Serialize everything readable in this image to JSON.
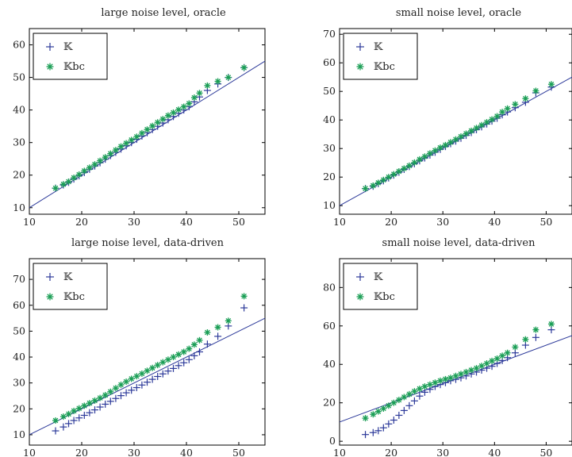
{
  "colors": {
    "K": "#2d3a9a",
    "Kbc": "#1a9e55",
    "ref_line": "#2d3a9a",
    "axis": "#000000"
  },
  "chart_data": [
    {
      "type": "scatter",
      "title": "large noise level, oracle",
      "xlim": [
        10,
        55
      ],
      "ylim": [
        8,
        65
      ],
      "xticks": [
        "10",
        "20",
        "30",
        "40",
        "50"
      ],
      "yticks": [
        "10",
        "20",
        "30",
        "40",
        "50",
        "60"
      ],
      "legend": {
        "position": "top-left",
        "entries": [
          "𝕂",
          "𝕂bc"
        ]
      },
      "reference_line": [
        [
          10,
          10
        ],
        [
          55,
          55
        ]
      ],
      "series": [
        {
          "name": "𝕂",
          "marker": "plus",
          "x": [
            15,
            16.5,
            17.5,
            18.5,
            19.5,
            20.5,
            21.5,
            22.5,
            23.5,
            24.5,
            25.5,
            26.5,
            27.5,
            28.5,
            29.5,
            30.5,
            31.5,
            32.5,
            33.5,
            34.5,
            35.5,
            36.5,
            37.5,
            38.5,
            39.5,
            40.5,
            41.5,
            42.5,
            44,
            46,
            48,
            51
          ],
          "y": [
            16,
            17,
            17.8,
            18.8,
            19.8,
            20.8,
            21.8,
            22.8,
            23.8,
            24.9,
            26,
            27,
            28,
            29,
            30,
            31,
            32,
            33,
            34,
            35,
            36,
            37,
            38,
            39,
            40,
            41,
            42.5,
            44,
            46,
            48,
            50,
            53
          ]
        },
        {
          "name": "𝕂bc",
          "marker": "star",
          "x": [
            15,
            16.5,
            17.5,
            18.5,
            19.5,
            20.5,
            21.5,
            22.5,
            23.5,
            24.5,
            25.5,
            26.5,
            27.5,
            28.5,
            29.5,
            30.5,
            31.5,
            32.5,
            33.5,
            34.5,
            35.5,
            36.5,
            37.5,
            38.5,
            39.5,
            40.5,
            41.5,
            42.5,
            44,
            46,
            48,
            51
          ],
          "y": [
            16,
            17.2,
            18,
            19.2,
            20.2,
            21.3,
            22.3,
            23.3,
            24.4,
            25.5,
            26.6,
            27.7,
            28.8,
            29.8,
            30.8,
            31.8,
            32.9,
            34,
            35.1,
            36.2,
            37.2,
            38.3,
            39.2,
            40.1,
            41,
            42,
            43.8,
            45.2,
            47.5,
            48.8,
            50,
            53
          ]
        }
      ]
    },
    {
      "type": "scatter",
      "title": "small noise level, oracle",
      "xlim": [
        10,
        55
      ],
      "ylim": [
        7,
        72
      ],
      "xticks": [
        "10",
        "20",
        "30",
        "40",
        "50"
      ],
      "yticks": [
        "10",
        "20",
        "30",
        "40",
        "50",
        "60",
        "70"
      ],
      "legend": {
        "position": "top-left",
        "entries": [
          "𝕂",
          "𝕂bc"
        ]
      },
      "reference_line": [
        [
          10,
          10
        ],
        [
          55,
          55
        ]
      ],
      "series": [
        {
          "name": "𝕂",
          "marker": "plus",
          "x": [
            15,
            16.5,
            17.5,
            18.5,
            19.5,
            20.5,
            21.5,
            22.5,
            23.5,
            24.5,
            25.5,
            26.5,
            27.5,
            28.5,
            29.5,
            30.5,
            31.5,
            32.5,
            33.5,
            34.5,
            35.5,
            36.5,
            37.5,
            38.5,
            39.5,
            40.5,
            41.5,
            42.5,
            44,
            46,
            48,
            51
          ],
          "y": [
            16,
            16.8,
            17.7,
            18.7,
            19.7,
            20.7,
            21.7,
            22.7,
            23.7,
            24.7,
            25.7,
            26.7,
            27.7,
            28.7,
            29.7,
            30.7,
            31.7,
            32.6,
            33.6,
            34.6,
            35.6,
            36.6,
            37.6,
            38.6,
            39.6,
            40.6,
            41.8,
            42.8,
            44.3,
            46.2,
            49.5,
            51.5
          ]
        },
        {
          "name": "𝕂bc",
          "marker": "star",
          "x": [
            15,
            16.5,
            17.5,
            18.5,
            19.5,
            20.5,
            21.5,
            22.5,
            23.5,
            24.5,
            25.5,
            26.5,
            27.5,
            28.5,
            29.5,
            30.5,
            31.5,
            32.5,
            33.5,
            34.5,
            35.5,
            36.5,
            37.5,
            38.5,
            39.5,
            40.5,
            41.5,
            42.5,
            44,
            46,
            48,
            51
          ],
          "y": [
            16,
            17,
            18,
            19,
            20,
            21,
            22,
            23,
            24,
            25.1,
            26.2,
            27.2,
            28.3,
            29.3,
            30.3,
            31.2,
            32.2,
            33.2,
            34.2,
            35.2,
            36.2,
            37.2,
            38.2,
            39.2,
            40.2,
            41.3,
            42.8,
            44,
            45.5,
            47.5,
            50.2,
            52.5
          ]
        }
      ]
    },
    {
      "type": "scatter",
      "title": "large noise level, data-driven",
      "xlim": [
        10,
        55
      ],
      "ylim": [
        6,
        78
      ],
      "xticks": [
        "10",
        "20",
        "30",
        "40",
        "50"
      ],
      "yticks": [
        "10",
        "20",
        "30",
        "40",
        "50",
        "60",
        "70"
      ],
      "legend": {
        "position": "top-left",
        "entries": [
          "𝕂",
          "𝕂bc"
        ]
      },
      "reference_line": [
        [
          10,
          10
        ],
        [
          55,
          55
        ]
      ],
      "series": [
        {
          "name": "𝕂",
          "marker": "plus",
          "x": [
            15,
            16.5,
            17.5,
            18.5,
            19.5,
            20.5,
            21.5,
            22.5,
            23.5,
            24.5,
            25.5,
            26.5,
            27.5,
            28.5,
            29.5,
            30.5,
            31.5,
            32.5,
            33.5,
            34.5,
            35.5,
            36.5,
            37.5,
            38.5,
            39.5,
            40.5,
            41.5,
            42.5,
            44,
            46,
            48,
            51
          ],
          "y": [
            11.5,
            13,
            14.3,
            15.5,
            16.5,
            17.5,
            18.5,
            19.6,
            20.7,
            21.8,
            22.9,
            24,
            25.1,
            26.2,
            27.2,
            28.2,
            29.2,
            30.3,
            31.4,
            32.5,
            33.5,
            34.6,
            35.6,
            36.7,
            37.8,
            39,
            40.5,
            42,
            45,
            48,
            52,
            59
          ]
        },
        {
          "name": "𝕂bc",
          "marker": "star",
          "x": [
            15,
            16.5,
            17.5,
            18.5,
            19.5,
            20.5,
            21.5,
            22.5,
            23.5,
            24.5,
            25.5,
            26.5,
            27.5,
            28.5,
            29.5,
            30.5,
            31.5,
            32.5,
            33.5,
            34.5,
            35.5,
            36.5,
            37.5,
            38.5,
            39.5,
            40.5,
            41.5,
            42.5,
            44,
            46,
            48,
            51
          ],
          "y": [
            15.5,
            17,
            18,
            19.2,
            20.2,
            21.2,
            22.2,
            23.2,
            24.2,
            25.3,
            26.6,
            28,
            29.3,
            30.5,
            31.6,
            32.6,
            33.6,
            34.7,
            35.8,
            36.9,
            38,
            39,
            40,
            41,
            42,
            43.2,
            44.8,
            46.5,
            49.5,
            51.5,
            54,
            63.5
          ]
        }
      ]
    },
    {
      "type": "scatter",
      "title": "small noise level, data-driven",
      "xlim": [
        10,
        55
      ],
      "ylim": [
        -2,
        95
      ],
      "xticks": [
        "10",
        "20",
        "30",
        "40",
        "50"
      ],
      "yticks": [
        "0",
        "20",
        "40",
        "60",
        "80"
      ],
      "legend": {
        "position": "top-left",
        "entries": [
          "𝕂",
          "𝕂bc"
        ]
      },
      "reference_line": [
        [
          10,
          10
        ],
        [
          55,
          55
        ]
      ],
      "series": [
        {
          "name": "𝕂",
          "marker": "plus",
          "x": [
            15,
            16.5,
            17.5,
            18.5,
            19.5,
            20.5,
            21.5,
            22.5,
            23.5,
            24.5,
            25.5,
            26.5,
            27.5,
            28.5,
            29.5,
            30.5,
            31.5,
            32.5,
            33.5,
            34.5,
            35.5,
            36.5,
            37.5,
            38.5,
            39.5,
            40.5,
            41.5,
            42.5,
            44,
            46,
            48,
            51
          ],
          "y": [
            3.5,
            4.5,
            5.5,
            7,
            9,
            11,
            13.5,
            16,
            18.5,
            21,
            23.5,
            25.5,
            27,
            28.5,
            29.5,
            30.5,
            31.5,
            32.2,
            33,
            34,
            35,
            36,
            37,
            38,
            39,
            40.5,
            42,
            43.5,
            46,
            50,
            54,
            58
          ]
        },
        {
          "name": "𝕂bc",
          "marker": "star",
          "x": [
            15,
            16.5,
            17.5,
            18.5,
            19.5,
            20.5,
            21.5,
            22.5,
            23.5,
            24.5,
            25.5,
            26.5,
            27.5,
            28.5,
            29.5,
            30.5,
            31.5,
            32.5,
            33.5,
            34.5,
            35.5,
            36.5,
            37.5,
            38.5,
            39.5,
            40.5,
            41.5,
            42.5,
            44,
            46,
            48,
            51
          ],
          "y": [
            12,
            14,
            15.5,
            17,
            18.5,
            20,
            21.5,
            23,
            24.5,
            26,
            27.3,
            28.5,
            29.5,
            30.5,
            31.5,
            32.3,
            33,
            34,
            35,
            36,
            37,
            38,
            39.2,
            40.5,
            41.8,
            43,
            44.5,
            46,
            49,
            53,
            58,
            61
          ]
        }
      ]
    }
  ]
}
